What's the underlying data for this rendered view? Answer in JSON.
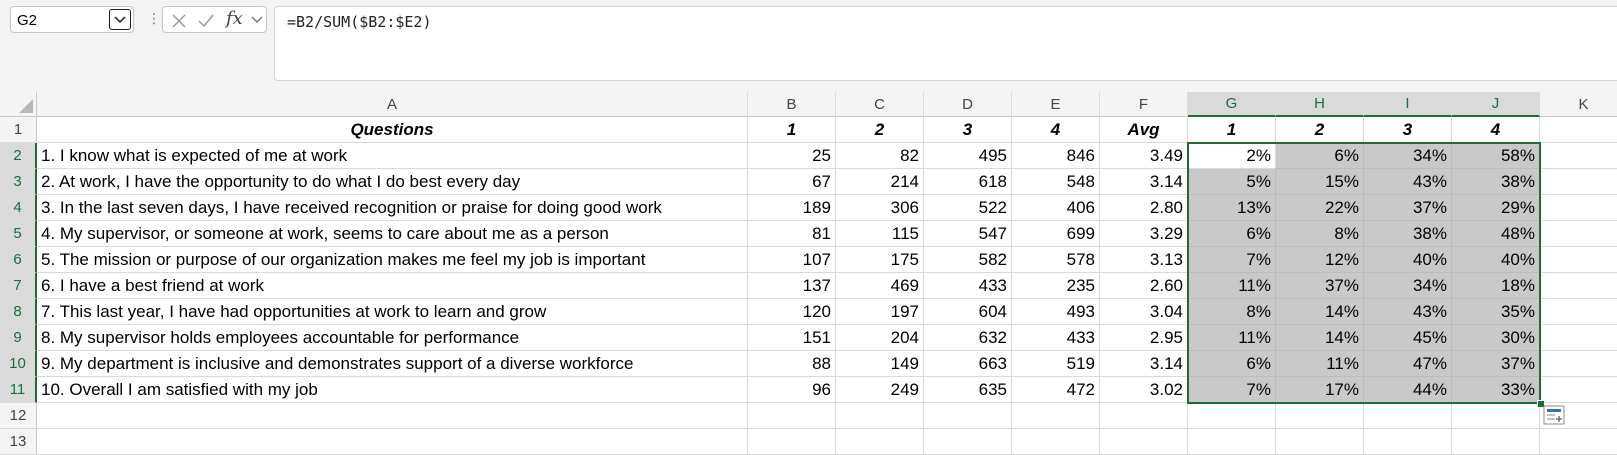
{
  "formula_bar": {
    "name_box": "G2",
    "formula": "=B2/SUM($B2:$E2)",
    "fx_label": "fx"
  },
  "columns": [
    "A",
    "B",
    "C",
    "D",
    "E",
    "F",
    "G",
    "H",
    "I",
    "J",
    "K"
  ],
  "selected_columns": [
    "G",
    "H",
    "I",
    "J"
  ],
  "rows": [
    "1",
    "2",
    "3",
    "4",
    "5",
    "6",
    "7",
    "8",
    "9",
    "10",
    "11",
    "12",
    "13"
  ],
  "selected_rows": [
    "2",
    "3",
    "4",
    "5",
    "6",
    "7",
    "8",
    "9",
    "10",
    "11"
  ],
  "headers": {
    "A": "Questions",
    "B": "1",
    "C": "2",
    "D": "3",
    "E": "4",
    "F": "Avg",
    "G": "1",
    "H": "2",
    "I": "3",
    "J": "4"
  },
  "table": [
    {
      "q": "1. I know what is expected of me at work",
      "b": "25",
      "c": "82",
      "d": "495",
      "e": "846",
      "f": "3.49",
      "g": "2%",
      "h": "6%",
      "i": "34%",
      "j": "58%"
    },
    {
      "q": "2. At work, I have the opportunity to do what I do best every day",
      "b": "67",
      "c": "214",
      "d": "618",
      "e": "548",
      "f": "3.14",
      "g": "5%",
      "h": "15%",
      "i": "43%",
      "j": "38%"
    },
    {
      "q": "3. In the last seven days, I have received recognition or praise for doing good work",
      "b": "189",
      "c": "306",
      "d": "522",
      "e": "406",
      "f": "2.80",
      "g": "13%",
      "h": "22%",
      "i": "37%",
      "j": "29%"
    },
    {
      "q": "4. My supervisor, or someone at work, seems to care about me as a person",
      "b": "81",
      "c": "115",
      "d": "547",
      "e": "699",
      "f": "3.29",
      "g": "6%",
      "h": "8%",
      "i": "38%",
      "j": "48%"
    },
    {
      "q": "5. The mission or purpose of our organization makes me feel my job is important",
      "b": "107",
      "c": "175",
      "d": "582",
      "e": "578",
      "f": "3.13",
      "g": "7%",
      "h": "12%",
      "i": "40%",
      "j": "40%"
    },
    {
      "q": "6. I have a best friend at work",
      "b": "137",
      "c": "469",
      "d": "433",
      "e": "235",
      "f": "2.60",
      "g": "11%",
      "h": "37%",
      "i": "34%",
      "j": "18%"
    },
    {
      "q": "7. This last year, I have had opportunities at work to learn and grow",
      "b": "120",
      "c": "197",
      "d": "604",
      "e": "493",
      "f": "3.04",
      "g": "8%",
      "h": "14%",
      "i": "43%",
      "j": "35%"
    },
    {
      "q": "8. My supervisor holds employees accountable for performance",
      "b": "151",
      "c": "204",
      "d": "632",
      "e": "433",
      "f": "2.95",
      "g": "11%",
      "h": "14%",
      "i": "45%",
      "j": "30%"
    },
    {
      "q": "9. My department is inclusive and demonstrates support of a diverse workforce",
      "b": "88",
      "c": "149",
      "d": "663",
      "e": "519",
      "f": "3.14",
      "g": "6%",
      "h": "11%",
      "i": "47%",
      "j": "37%"
    },
    {
      "q": "10. Overall I am satisfied with my job",
      "b": "96",
      "c": "249",
      "d": "635",
      "e": "472",
      "f": "3.02",
      "g": "7%",
      "h": "17%",
      "i": "44%",
      "j": "33%"
    }
  ],
  "colors": {
    "selection": "#1e6b3c",
    "selection_fill": "#c9c9c9",
    "header_bg": "#f4f4f4"
  }
}
